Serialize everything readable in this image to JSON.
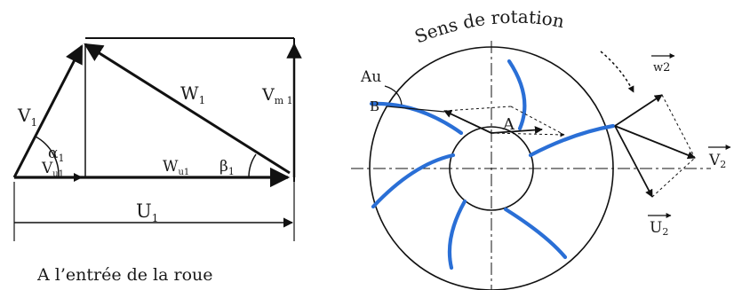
{
  "left_diagram": {
    "labels": {
      "v1": "V",
      "v1_sub": "1",
      "alpha1": "α",
      "alpha1_sub": "1",
      "vu1": "V",
      "vu1_sub": "u1",
      "wu1": "W",
      "wu1_sub": "u1",
      "beta1": "β",
      "beta1_sub": "1",
      "w1": "W",
      "w1_sub": "1",
      "vm1": "V",
      "vm1_sub": "m 1",
      "u1": "U",
      "u1_sub": "1"
    },
    "caption": "A l’entrée de la roue"
  },
  "right_diagram": {
    "title_arc": "Sens de rotation",
    "labels": {
      "au": "Au",
      "b": "B",
      "a": "A",
      "w2": "w2",
      "u2": "U",
      "u2_sub": "2",
      "v2": "V",
      "v2_sub": "2"
    },
    "colors": {
      "blade": "#2a6fd6",
      "ink": "#111111"
    }
  }
}
